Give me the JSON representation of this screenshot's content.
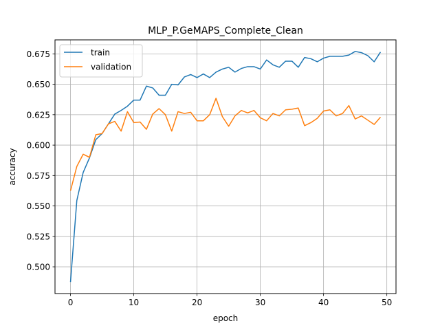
{
  "chart_data": {
    "type": "line",
    "title": "MLP_P.GeMAPS_Complete_Clean",
    "xlabel": "epoch",
    "ylabel": "accuracy",
    "xlim": [
      -2.45,
      51.45
    ],
    "ylim": [
      0.478,
      0.6865
    ],
    "xticks": [
      0,
      10,
      20,
      30,
      40,
      50
    ],
    "yticks": [
      0.5,
      0.525,
      0.55,
      0.575,
      0.6,
      0.625,
      0.65,
      0.675
    ],
    "xtick_labels": [
      "0",
      "10",
      "20",
      "30",
      "40",
      "50"
    ],
    "ytick_labels": [
      "0.500",
      "0.525",
      "0.550",
      "0.575",
      "0.600",
      "0.625",
      "0.650",
      "0.675"
    ],
    "grid": true,
    "legend_position": "upper-left",
    "x": [
      0,
      1,
      2,
      3,
      4,
      5,
      6,
      7,
      8,
      9,
      10,
      11,
      12,
      13,
      14,
      15,
      16,
      17,
      18,
      19,
      20,
      21,
      22,
      23,
      24,
      25,
      26,
      27,
      28,
      29,
      30,
      31,
      32,
      33,
      34,
      35,
      36,
      37,
      38,
      39,
      40,
      41,
      42,
      43,
      44,
      45,
      46,
      47,
      48,
      49
    ],
    "series": [
      {
        "name": "train",
        "color": "#1f77b4",
        "values": [
          0.4875,
          0.5545,
          0.5775,
          0.5895,
          0.6045,
          0.6095,
          0.6175,
          0.6255,
          0.6285,
          0.632,
          0.637,
          0.637,
          0.6485,
          0.647,
          0.641,
          0.641,
          0.65,
          0.6495,
          0.656,
          0.658,
          0.6555,
          0.6585,
          0.6555,
          0.66,
          0.6625,
          0.664,
          0.66,
          0.663,
          0.6645,
          0.6645,
          0.6625,
          0.67,
          0.666,
          0.664,
          0.669,
          0.669,
          0.664,
          0.672,
          0.671,
          0.6685,
          0.6715,
          0.673,
          0.673,
          0.673,
          0.674,
          0.677,
          0.676,
          0.6735,
          0.6685,
          0.6765
        ]
      },
      {
        "name": "validation",
        "color": "#ff7f0e",
        "values": [
          0.5625,
          0.5825,
          0.5925,
          0.59,
          0.6085,
          0.6095,
          0.6175,
          0.6195,
          0.6115,
          0.6275,
          0.6185,
          0.619,
          0.613,
          0.6255,
          0.63,
          0.625,
          0.6115,
          0.6275,
          0.626,
          0.627,
          0.62,
          0.62,
          0.625,
          0.6385,
          0.6235,
          0.6155,
          0.624,
          0.6285,
          0.6265,
          0.6285,
          0.6225,
          0.62,
          0.626,
          0.624,
          0.629,
          0.6295,
          0.6305,
          0.616,
          0.6185,
          0.622,
          0.628,
          0.629,
          0.624,
          0.626,
          0.6325,
          0.6215,
          0.624,
          0.6205,
          0.617,
          0.623
        ]
      }
    ]
  }
}
